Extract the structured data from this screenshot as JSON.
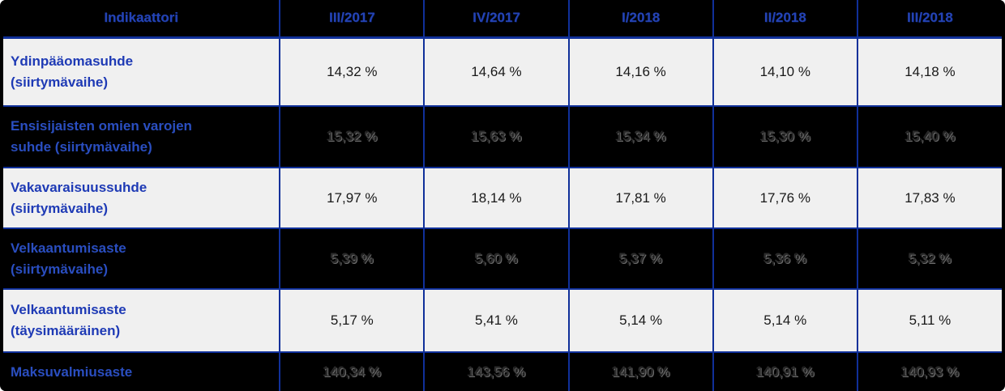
{
  "colors": {
    "table-bg": "#000000",
    "light-row-bg": "#F0F0F0",
    "grid-blue": "#10309A",
    "header-text": "#2443B4",
    "label-blue-light-row": "#1E3AB5",
    "label-blue-dark-row": "#2A4EC0",
    "value-text-light-row": "#191919",
    "value-text-dark-row": "#2A2A2A"
  },
  "table": {
    "header": {
      "indicator": "Indikaattori",
      "periods": [
        "III/2017",
        "IV/2017",
        "I/2018",
        "II/2018",
        "III/2018"
      ]
    },
    "rows": [
      {
        "label": "Ydinpääomasuhde\n(siirtymävaihe)",
        "theme": "light",
        "values": [
          "14,32 %",
          "14,64 %",
          "14,16 %",
          "14,10 %",
          "14,18 %"
        ]
      },
      {
        "label": "Ensisijaisten omien varojen\nsuhde (siirtymävaihe)",
        "theme": "dark",
        "values": [
          "15,32 %",
          "15,63 %",
          "15,34 %",
          "15,30 %",
          "15,40 %"
        ]
      },
      {
        "label": "Vakavaraisuussuhde\n(siirtymävaihe)",
        "theme": "light",
        "values": [
          "17,97 %",
          "18,14 %",
          "17,81 %",
          "17,76 %",
          "17,83 %"
        ]
      },
      {
        "label": "Velkaantumisaste\n(siirtymävaihe)",
        "theme": "dark",
        "values": [
          "5,39 %",
          "5,60 %",
          "5,37 %",
          "5,36 %",
          "5,32 %"
        ]
      },
      {
        "label": "Velkaantumisaste\n(täysimääräinen)",
        "theme": "light",
        "values": [
          "5,17 %",
          "5,41 %",
          "5,14 %",
          "5,14 %",
          "5,11 %"
        ]
      },
      {
        "label": "Maksuvalmiusaste",
        "theme": "dark",
        "values": [
          "140,34 %",
          "143,56 %",
          "141,90 %",
          "140,91 %",
          "140,93 %"
        ]
      }
    ]
  }
}
